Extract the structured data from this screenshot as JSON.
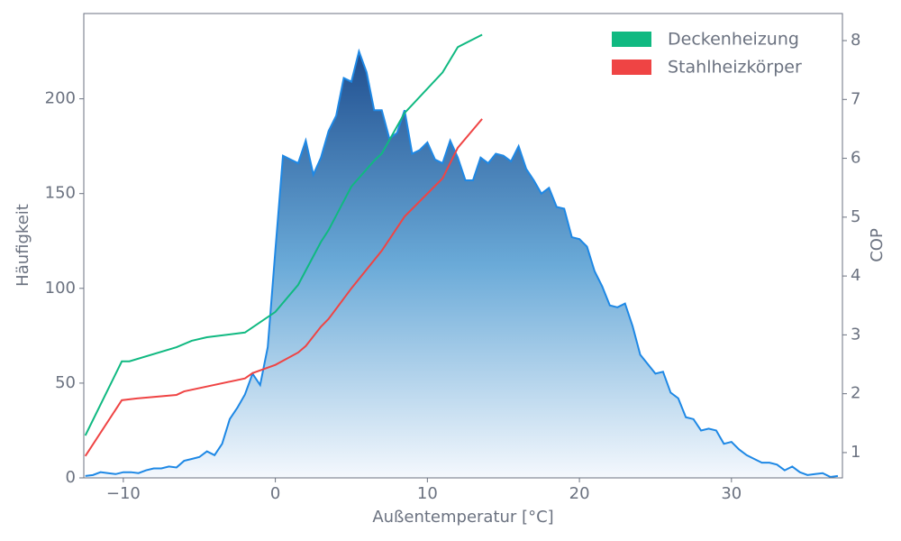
{
  "chart_data": {
    "type": "area",
    "x_label": "Außentemperatur [°C]",
    "y_label": "Häufigkeit",
    "y2_label": "COP",
    "x": [
      -12.5,
      -12,
      -11.5,
      -11,
      -10.5,
      -10,
      -9.5,
      -9,
      -8.5,
      -8,
      -7.5,
      -7,
      -6.5,
      -6,
      -5.5,
      -5,
      -4.5,
      -4,
      -3.5,
      -3,
      -2.5,
      -2,
      -1.5,
      -1,
      -0.5,
      0,
      0.5,
      1,
      1.5,
      2,
      2.5,
      3,
      3.5,
      4,
      4.5,
      5,
      5.5,
      6,
      6.5,
      7,
      7.5,
      8,
      8.5,
      9,
      9.5,
      10,
      10.5,
      11,
      11.5,
      12,
      12.5,
      13,
      13.5,
      14,
      14.5,
      15,
      15.5,
      16,
      16.5,
      17,
      17.5,
      18,
      18.5,
      19,
      19.5,
      20,
      20.5,
      21,
      21.5,
      22,
      22.5,
      23,
      23.5,
      24,
      24.5,
      25,
      25.5,
      26,
      26.5,
      27,
      27.5,
      28,
      28.5,
      29,
      29.5,
      30,
      30.5,
      31,
      31.5,
      32,
      32.5,
      33,
      33.5,
      34,
      34.5,
      35,
      35.5,
      36,
      36.5,
      37
    ],
    "values": [
      1,
      1.5,
      3,
      2.5,
      2,
      3,
      3,
      2.5,
      4,
      5,
      5,
      6,
      5.5,
      9,
      10,
      11,
      14,
      12,
      18,
      31,
      37,
      44,
      55,
      49,
      69,
      120,
      170,
      168,
      166,
      178,
      160,
      169,
      183,
      191,
      211,
      209,
      225,
      214,
      194,
      194,
      179,
      182,
      194,
      171,
      173,
      177,
      168,
      166,
      178,
      169,
      157,
      157,
      169,
      166,
      171,
      170,
      167,
      175,
      163,
      157,
      150,
      153,
      143,
      142,
      127,
      126,
      122,
      109,
      101,
      91,
      90,
      92,
      80,
      65,
      60,
      55,
      56,
      45,
      42,
      32,
      31,
      25,
      26,
      25,
      18,
      19,
      15,
      12,
      10,
      8,
      8,
      7,
      4,
      6,
      3,
      1.5,
      2,
      2.5,
      0.5,
      1
    ],
    "color": "#1e88e5",
    "series": [
      {
        "name": "Deckenheizung",
        "color": "#10b981",
        "type": "line",
        "axis": "y2",
        "x": [
          -12.5,
          -10.1,
          -9.6,
          -6.5,
          -5.5,
          -4.5,
          -2,
          0,
          1.5,
          3,
          3.5,
          5,
          6.5,
          7,
          8.5,
          11,
          12,
          13.6
        ],
        "values": [
          1.29,
          2.55,
          2.55,
          2.79,
          2.9,
          2.96,
          3.04,
          3.39,
          3.85,
          4.58,
          4.78,
          5.52,
          5.96,
          6.08,
          6.77,
          7.46,
          7.89,
          8.1
        ]
      },
      {
        "name": "Stahlheizkörper",
        "color": "#ef4444",
        "type": "line",
        "axis": "y2",
        "x": [
          -12.5,
          -10.1,
          -9.1,
          -6.5,
          -6,
          -2,
          -1.5,
          0,
          1.5,
          2,
          3,
          3.5,
          5,
          7,
          8.5,
          11,
          12,
          13.6
        ],
        "values": [
          0.94,
          1.89,
          1.92,
          1.98,
          2.04,
          2.26,
          2.35,
          2.49,
          2.7,
          2.81,
          3.14,
          3.27,
          3.79,
          4.43,
          5.01,
          5.66,
          6.18,
          6.67
        ]
      }
    ],
    "xlim": [
      -12.6,
      37.3
    ],
    "xticks": [
      {
        "value": -10,
        "label": "−10"
      },
      0,
      10,
      20,
      30
    ],
    "ylim": [
      0,
      245
    ],
    "yticks": [
      0,
      50,
      100,
      150,
      200
    ],
    "y2lim": [
      0.57,
      8.46
    ],
    "y2ticks": [
      1,
      2,
      3,
      4,
      5,
      6,
      7,
      8
    ],
    "legend": "upper right",
    "grid": false
  }
}
